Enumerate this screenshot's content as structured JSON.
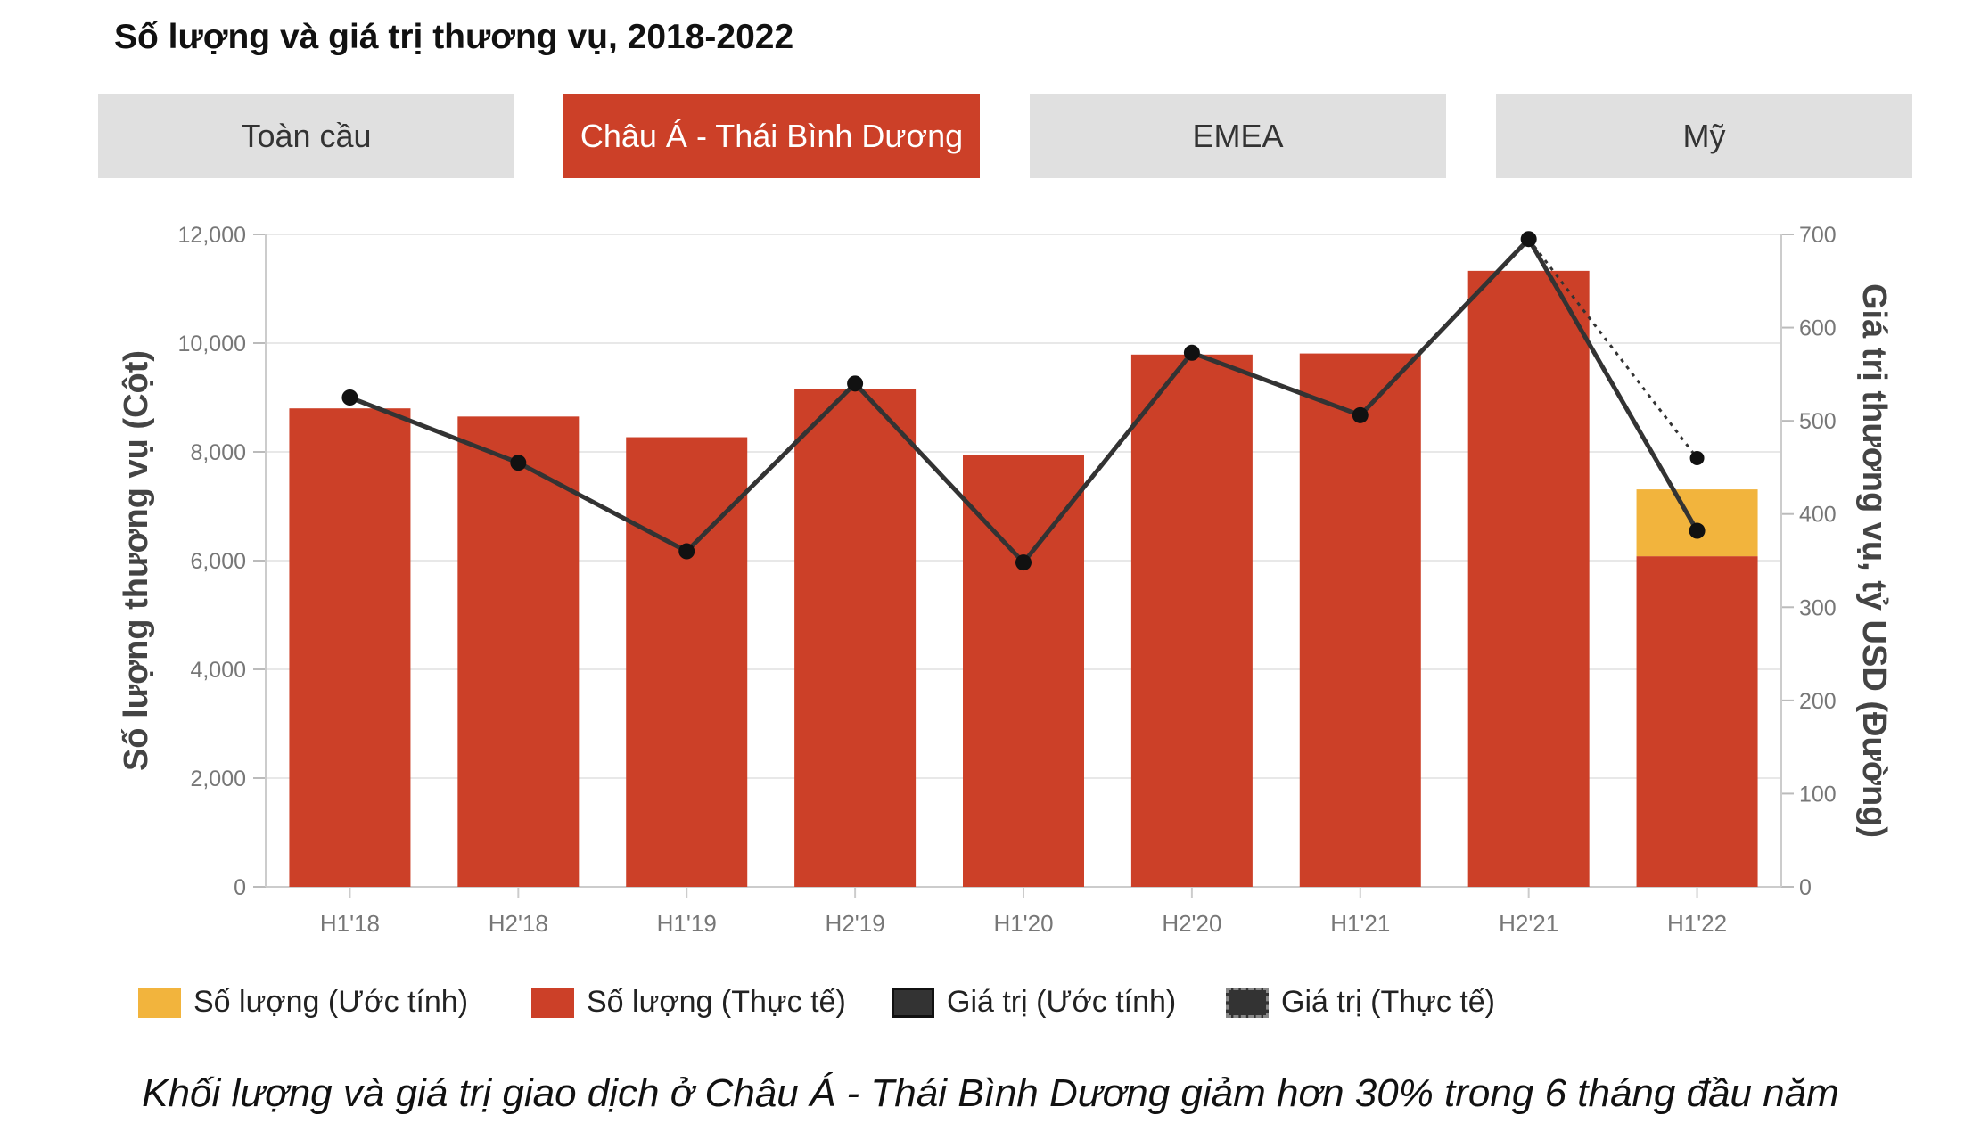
{
  "title": "Số lượng và giá trị thương vụ, 2018-2022",
  "tabs": [
    {
      "label": "Toàn cầu",
      "active": false
    },
    {
      "label": "Châu Á - Thái Bình Dương",
      "active": true
    },
    {
      "label": "EMEA",
      "active": false
    },
    {
      "label": "Mỹ",
      "active": false
    }
  ],
  "legend": [
    {
      "label": "Số lượng (Ước tính)",
      "color": "#f2b43d",
      "style": "fill"
    },
    {
      "label": "Số lượng (Thực tế)",
      "color": "#cc4028",
      "style": "fill"
    },
    {
      "label": "Giá trị (Ước tính)",
      "color": "#333333",
      "style": "solid"
    },
    {
      "label": "Giá trị (Thực tế)",
      "color": "#333333",
      "style": "dashed"
    }
  ],
  "caption": "Khối lượng và giá trị giao dịch ở Châu Á - Thái Bình Dương giảm hơn 30% trong 6 tháng đầu năm",
  "chart_data": {
    "type": "bar",
    "categories": [
      "H1'18",
      "H2'18",
      "H1'19",
      "H2'19",
      "H1'20",
      "H2'20",
      "H1'21",
      "H2'21",
      "H1'22"
    ],
    "ylabel": "Số lượng thương vụ (Cột)",
    "y2label": "Giá trị thương vụ, tỷ USD (Đường)",
    "ylim": [
      0,
      12000
    ],
    "y2lim": [
      0,
      700
    ],
    "yticks": [
      "0",
      "2,000",
      "4,000",
      "6,000",
      "8,000",
      "10,000",
      "12,000"
    ],
    "y2ticks": [
      "0",
      "100",
      "200",
      "300",
      "400",
      "500",
      "600",
      "700"
    ],
    "bars_actual": [
      8800,
      8650,
      8270,
      9160,
      7940,
      9790,
      9810,
      11330,
      6080
    ],
    "bars_estimate": [
      0,
      0,
      0,
      0,
      0,
      0,
      0,
      0,
      1230
    ],
    "line_solid": [
      525,
      455,
      360,
      540,
      348,
      573,
      506,
      695,
      382
    ],
    "line_dotted_end": {
      "from_index": 7,
      "to_index": 8,
      "from_value": 695,
      "to_value": 460
    },
    "colors": {
      "actual": "#cc4028",
      "estimate": "#f2b43d",
      "line": "#333333",
      "grid": "#e8e8e8"
    },
    "grid": true,
    "legend_position": "bottom"
  }
}
